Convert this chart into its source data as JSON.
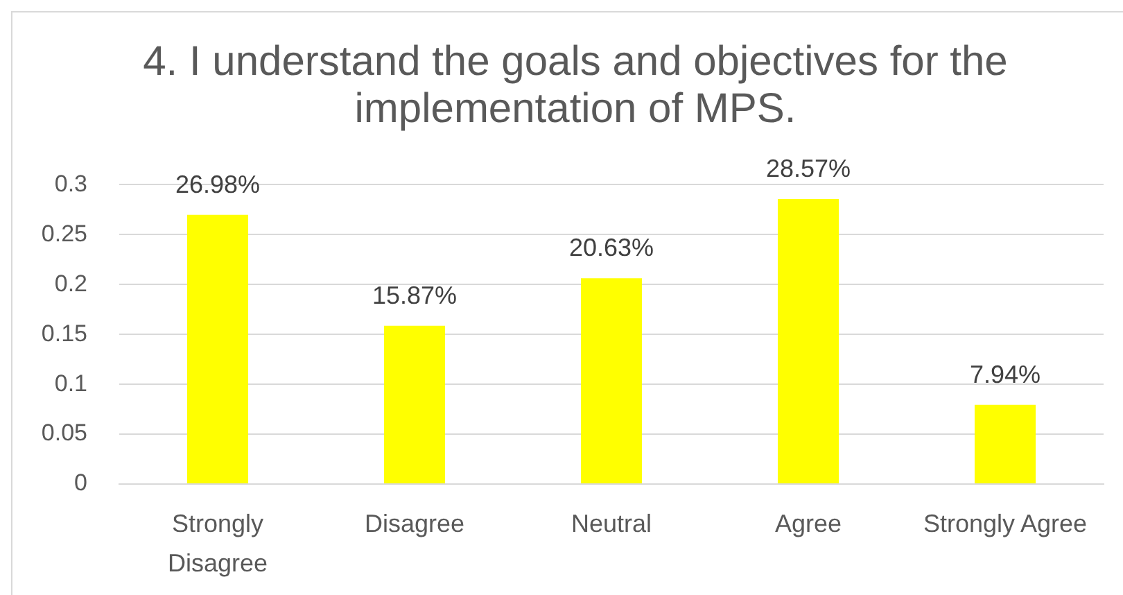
{
  "chart_data": {
    "type": "bar",
    "title": "4. I understand the goals and objectives for the implementation of MPS.",
    "categories": [
      "Strongly Disagree",
      "Disagree",
      "Neutral",
      "Agree",
      "Strongly Agree"
    ],
    "values": [
      0.2698,
      0.1587,
      0.2063,
      0.2857,
      0.0794
    ],
    "value_labels": [
      "26.98%",
      "15.87%",
      "20.63%",
      "28.57%",
      "7.94%"
    ],
    "color": "#ffff00",
    "ylim": [
      0,
      0.3
    ],
    "yticks": [
      0,
      0.05,
      0.1,
      0.15,
      0.2,
      0.25,
      0.3
    ],
    "grid": "y",
    "legend": false
  }
}
